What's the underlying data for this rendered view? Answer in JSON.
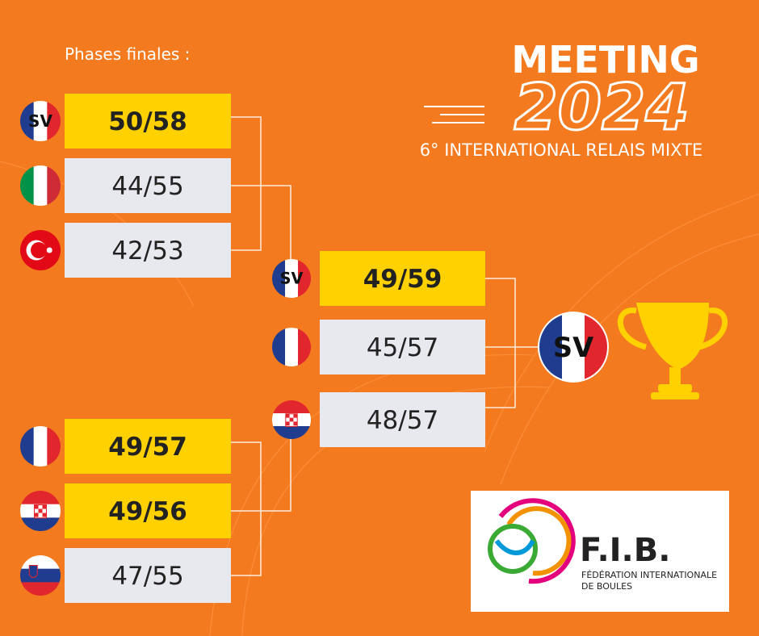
{
  "header": {
    "title": "MEETING",
    "year": "2024",
    "subtitle": "6° INTERNATIONAL RELAIS MIXTE",
    "section": "Phases finales :"
  },
  "semifinal_1": [
    {
      "flag": "fr",
      "label": "SV",
      "score": "50/58",
      "winner": true
    },
    {
      "flag": "it",
      "score": "44/55",
      "winner": false
    },
    {
      "flag": "tr",
      "score": "42/53",
      "winner": false
    }
  ],
  "semifinal_2": [
    {
      "flag": "fr",
      "score": "49/57",
      "winner": true
    },
    {
      "flag": "hr",
      "score": "49/56",
      "winner": true
    },
    {
      "flag": "si",
      "score": "47/55",
      "winner": false
    }
  ],
  "final": [
    {
      "flag": "fr",
      "label": "SV",
      "score": "49/59",
      "winner": true
    },
    {
      "flag": "fr",
      "score": "45/57",
      "winner": false
    },
    {
      "flag": "hr",
      "score": "48/57",
      "winner": false
    }
  ],
  "champion": {
    "flag": "fr",
    "label": "SV"
  },
  "logo": {
    "name": "F.I.B.",
    "line1": "FÉDÉRATION INTERNATIONALE",
    "line2": "DE BOULES"
  }
}
